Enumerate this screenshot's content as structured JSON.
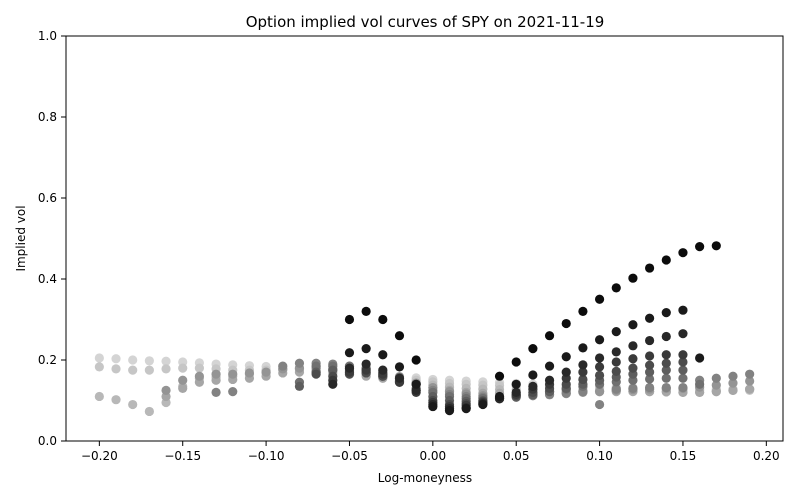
{
  "chart_data": {
    "type": "scatter",
    "title": "Option implied vol curves of SPY on 2021-11-19",
    "xlabel": "Log-moneyness",
    "ylabel": "Implied vol",
    "xlim": [
      -0.22,
      0.21
    ],
    "ylim": [
      0.0,
      1.0
    ],
    "xticks": [
      -0.2,
      -0.15,
      -0.1,
      -0.05,
      0.0,
      0.05,
      0.1,
      0.15,
      0.2
    ],
    "xtick_labels": [
      "−0.20",
      "−0.15",
      "−0.10",
      "−0.05",
      "0.00",
      "0.05",
      "0.10",
      "0.15",
      "0.20"
    ],
    "yticks": [
      0.0,
      0.2,
      0.4,
      0.6,
      0.8,
      1.0
    ],
    "ytick_labels": [
      "0.0",
      "0.2",
      "0.4",
      "0.6",
      "0.8",
      "1.0"
    ],
    "grid": false,
    "legend": "none",
    "colors": {
      "darkest": "#000000",
      "lightest": "#d4d4d4",
      "axes": "#000000",
      "background": "#ffffff"
    },
    "series": [
      {
        "color": "#0c0c0c",
        "x": [
          -0.05,
          -0.04,
          -0.03,
          -0.02,
          -0.01,
          0.04,
          0.05,
          0.06,
          0.07,
          0.08,
          0.09,
          0.1,
          0.11,
          0.12,
          0.13,
          0.14,
          0.15,
          0.16,
          0.17
        ],
        "y": [
          0.3,
          0.32,
          0.3,
          0.26,
          0.2,
          0.16,
          0.195,
          0.228,
          0.26,
          0.29,
          0.32,
          0.35,
          0.378,
          0.402,
          0.427,
          0.447,
          0.465,
          0.48,
          0.482
        ]
      },
      {
        "color": "#1a1a1a",
        "x": [
          -0.05,
          -0.04,
          -0.03,
          -0.02,
          -0.01,
          0.0,
          0.01,
          0.02,
          0.03,
          0.04,
          0.05,
          0.06,
          0.07,
          0.08,
          0.09,
          0.1,
          0.11,
          0.12,
          0.13,
          0.14,
          0.15,
          0.16
        ],
        "y": [
          0.218,
          0.228,
          0.213,
          0.183,
          0.14,
          0.085,
          0.075,
          0.08,
          0.09,
          0.11,
          0.14,
          0.163,
          0.185,
          0.208,
          0.23,
          0.25,
          0.27,
          0.287,
          0.303,
          0.317,
          0.323,
          0.205
        ]
      },
      {
        "color": "#282828",
        "x": [
          -0.06,
          -0.05,
          -0.04,
          -0.03,
          -0.02,
          -0.01,
          0.0,
          0.01,
          0.02,
          0.03,
          0.04,
          0.05,
          0.06,
          0.07,
          0.08,
          0.09,
          0.1,
          0.11,
          0.12,
          0.13,
          0.14,
          0.15
        ],
        "y": [
          0.14,
          0.18,
          0.19,
          0.175,
          0.155,
          0.125,
          0.09,
          0.08,
          0.082,
          0.092,
          0.105,
          0.12,
          0.135,
          0.15,
          0.17,
          0.188,
          0.205,
          0.22,
          0.235,
          0.248,
          0.258,
          0.265
        ]
      },
      {
        "color": "#3a3a3a",
        "x": [
          -0.06,
          -0.05,
          -0.04,
          -0.03,
          -0.02,
          -0.01,
          0.0,
          0.01,
          0.02,
          0.03,
          0.04,
          0.05,
          0.06,
          0.07,
          0.08,
          0.09,
          0.1,
          0.11,
          0.12,
          0.13,
          0.14,
          0.15
        ],
        "y": [
          0.15,
          0.17,
          0.175,
          0.165,
          0.145,
          0.12,
          0.095,
          0.085,
          0.088,
          0.095,
          0.105,
          0.115,
          0.128,
          0.14,
          0.155,
          0.17,
          0.183,
          0.195,
          0.203,
          0.21,
          0.213,
          0.213
        ]
      },
      {
        "color": "#4c4c4c",
        "x": [
          -0.07,
          -0.06,
          -0.05,
          -0.04,
          -0.03,
          -0.02,
          -0.01,
          0.0,
          0.01,
          0.02,
          0.03,
          0.04,
          0.05,
          0.06,
          0.07,
          0.08,
          0.09,
          0.1,
          0.11,
          0.12,
          0.13,
          0.14,
          0.15
        ],
        "y": [
          0.165,
          0.16,
          0.165,
          0.168,
          0.16,
          0.145,
          0.125,
          0.1,
          0.09,
          0.092,
          0.098,
          0.105,
          0.112,
          0.12,
          0.13,
          0.14,
          0.152,
          0.162,
          0.172,
          0.18,
          0.187,
          0.192,
          0.195
        ]
      },
      {
        "color": "#5e5e5e",
        "x": [
          -0.08,
          -0.07,
          -0.06,
          -0.05,
          -0.04,
          -0.03,
          -0.02,
          -0.01,
          0.0,
          0.01,
          0.02,
          0.03,
          0.04,
          0.05,
          0.06,
          0.07,
          0.08,
          0.09,
          0.1,
          0.11,
          0.12,
          0.13,
          0.14,
          0.15
        ],
        "y": [
          0.135,
          0.17,
          0.175,
          0.178,
          0.17,
          0.16,
          0.148,
          0.13,
          0.11,
          0.1,
          0.098,
          0.1,
          0.104,
          0.108,
          0.114,
          0.122,
          0.13,
          0.14,
          0.15,
          0.158,
          0.165,
          0.17,
          0.175,
          0.175
        ]
      },
      {
        "color": "#707070",
        "x": [
          -0.08,
          -0.07,
          -0.06,
          -0.05,
          -0.04,
          -0.03,
          -0.02,
          -0.01,
          0.0,
          0.01,
          0.02,
          0.03,
          0.04,
          0.05,
          0.06,
          0.07,
          0.08,
          0.09,
          0.1,
          0.11,
          0.12,
          0.13,
          0.14,
          0.15,
          0.16
        ],
        "y": [
          0.145,
          0.185,
          0.185,
          0.185,
          0.18,
          0.17,
          0.158,
          0.14,
          0.12,
          0.11,
          0.105,
          0.105,
          0.108,
          0.112,
          0.116,
          0.122,
          0.128,
          0.135,
          0.14,
          0.146,
          0.15,
          0.153,
          0.155,
          0.155,
          0.14
        ]
      },
      {
        "color": "#828282",
        "x": [
          -0.13,
          -0.12,
          -0.09,
          -0.08,
          -0.07,
          -0.06,
          -0.05,
          -0.04,
          -0.03,
          -0.02,
          -0.01,
          0.0,
          0.01,
          0.02,
          0.03,
          0.04,
          0.05,
          0.06,
          0.07,
          0.08,
          0.09,
          0.1,
          0.11,
          0.12,
          0.13,
          0.14,
          0.15,
          0.16,
          0.17,
          0.18,
          0.19
        ],
        "y": [
          0.12,
          0.122,
          0.185,
          0.192,
          0.192,
          0.19,
          0.185,
          0.178,
          0.168,
          0.155,
          0.14,
          0.125,
          0.115,
          0.11,
          0.108,
          0.108,
          0.11,
          0.112,
          0.115,
          0.118,
          0.122,
          0.09,
          0.128,
          0.13,
          0.132,
          0.132,
          0.132,
          0.15,
          0.155,
          0.16,
          0.165
        ]
      },
      {
        "color": "#949494",
        "x": [
          -0.16,
          -0.15,
          -0.14,
          -0.13,
          -0.12,
          -0.11,
          -0.1,
          -0.09,
          -0.08,
          -0.07,
          -0.06,
          -0.05,
          -0.04,
          -0.03,
          -0.02,
          -0.01,
          0.0,
          0.01,
          0.02,
          0.03,
          0.04,
          0.05,
          0.06,
          0.07,
          0.08,
          0.09,
          0.1,
          0.11,
          0.12,
          0.13,
          0.14,
          0.15,
          0.16,
          0.17,
          0.18,
          0.19
        ],
        "y": [
          0.125,
          0.15,
          0.16,
          0.165,
          0.165,
          0.168,
          0.17,
          0.178,
          0.18,
          0.18,
          0.178,
          0.175,
          0.17,
          0.163,
          0.153,
          0.143,
          0.132,
          0.122,
          0.116,
          0.112,
          0.11,
          0.11,
          0.112,
          0.114,
          0.117,
          0.12,
          0.122,
          0.125,
          0.127,
          0.128,
          0.13,
          0.13,
          0.133,
          0.138,
          0.143,
          0.148
        ]
      },
      {
        "color": "#a6a6a6",
        "x": [
          -0.16,
          -0.15,
          -0.14,
          -0.13,
          -0.12,
          -0.11,
          -0.1,
          -0.09,
          -0.08,
          -0.07,
          -0.06,
          -0.05,
          -0.04,
          -0.03,
          -0.02,
          -0.01,
          0.0,
          0.01,
          0.02,
          0.03,
          0.04,
          0.05,
          0.06,
          0.07,
          0.08,
          0.09,
          0.1,
          0.11,
          0.12,
          0.13,
          0.14,
          0.15,
          0.16,
          0.17,
          0.18,
          0.19
        ],
        "y": [
          0.11,
          0.13,
          0.145,
          0.15,
          0.152,
          0.155,
          0.16,
          0.168,
          0.17,
          0.17,
          0.168,
          0.165,
          0.16,
          0.155,
          0.148,
          0.14,
          0.132,
          0.125,
          0.12,
          0.118,
          0.118,
          0.118,
          0.12,
          0.12,
          0.122,
          0.122,
          0.122,
          0.122,
          0.122,
          0.122,
          0.122,
          0.12,
          0.12,
          0.122,
          0.125,
          0.128
        ]
      },
      {
        "color": "#b8b8b8",
        "x": [
          -0.2,
          -0.19,
          -0.18,
          -0.17,
          -0.16,
          -0.15,
          -0.14,
          -0.13,
          -0.12,
          -0.11,
          -0.1,
          -0.09,
          -0.08,
          -0.07,
          -0.06,
          -0.05,
          -0.04,
          -0.03,
          -0.02,
          -0.01,
          0.0,
          0.01,
          0.02,
          0.03,
          0.04,
          0.05,
          0.06,
          0.07,
          0.08,
          0.09,
          0.1,
          0.11,
          0.12,
          0.13,
          0.14,
          0.15,
          0.16,
          0.17,
          0.18,
          0.19
        ],
        "y": [
          0.11,
          0.102,
          0.09,
          0.073,
          0.095,
          0.135,
          0.155,
          0.158,
          0.16,
          0.165,
          0.168,
          0.175,
          0.178,
          0.178,
          0.175,
          0.17,
          0.165,
          0.158,
          0.15,
          0.143,
          0.138,
          0.133,
          0.13,
          0.128,
          0.127,
          0.127,
          0.127,
          0.127,
          0.126,
          0.126,
          0.125,
          0.124,
          0.123,
          0.122,
          0.121,
          0.12,
          0.12,
          0.122,
          0.125,
          0.128
        ]
      },
      {
        "color": "#c6c6c6",
        "x": [
          -0.2,
          -0.19,
          -0.18,
          -0.17,
          -0.16,
          -0.15,
          -0.14,
          -0.13,
          -0.12,
          -0.11,
          -0.1,
          -0.09,
          -0.08,
          -0.07,
          -0.06,
          -0.05,
          -0.04,
          -0.03,
          -0.02,
          -0.01,
          0.0,
          0.01,
          0.02,
          0.03,
          0.04,
          0.05,
          0.06,
          0.07,
          0.08,
          0.09,
          0.1,
          0.11,
          0.12,
          0.13,
          0.14,
          0.15,
          0.16,
          0.17,
          0.18,
          0.19
        ],
        "y": [
          0.183,
          0.178,
          0.175,
          0.175,
          0.178,
          0.18,
          0.18,
          0.178,
          0.175,
          0.175,
          0.175,
          0.177,
          0.176,
          0.174,
          0.172,
          0.168,
          0.164,
          0.16,
          0.155,
          0.15,
          0.146,
          0.142,
          0.14,
          0.138,
          0.137,
          0.136,
          0.135,
          0.134,
          0.133,
          0.132,
          0.131,
          0.13,
          0.129,
          0.128,
          0.127,
          0.126,
          0.125,
          0.125,
          0.125,
          0.125
        ]
      },
      {
        "color": "#d4d4d4",
        "x": [
          -0.2,
          -0.19,
          -0.18,
          -0.17,
          -0.16,
          -0.15,
          -0.14,
          -0.13,
          -0.12,
          -0.11,
          -0.1,
          -0.09,
          -0.08,
          -0.07,
          -0.06,
          -0.05,
          -0.04,
          -0.03,
          -0.02,
          -0.01,
          0.0,
          0.01,
          0.02,
          0.03,
          0.04,
          0.05,
          0.06,
          0.07,
          0.08,
          0.09,
          0.1,
          0.11,
          0.12,
          0.13,
          0.14,
          0.15,
          0.16,
          0.17,
          0.18,
          0.19
        ],
        "y": [
          0.205,
          0.203,
          0.2,
          0.198,
          0.197,
          0.195,
          0.193,
          0.19,
          0.188,
          0.186,
          0.184,
          0.182,
          0.18,
          0.178,
          0.176,
          0.172,
          0.168,
          0.165,
          0.16,
          0.156,
          0.152,
          0.15,
          0.148,
          0.146,
          0.144,
          0.142,
          0.14,
          0.138,
          0.136,
          0.135,
          0.134,
          0.133,
          0.132,
          0.131,
          0.13,
          0.129,
          0.128,
          0.128,
          0.128,
          0.128
        ]
      }
    ]
  }
}
